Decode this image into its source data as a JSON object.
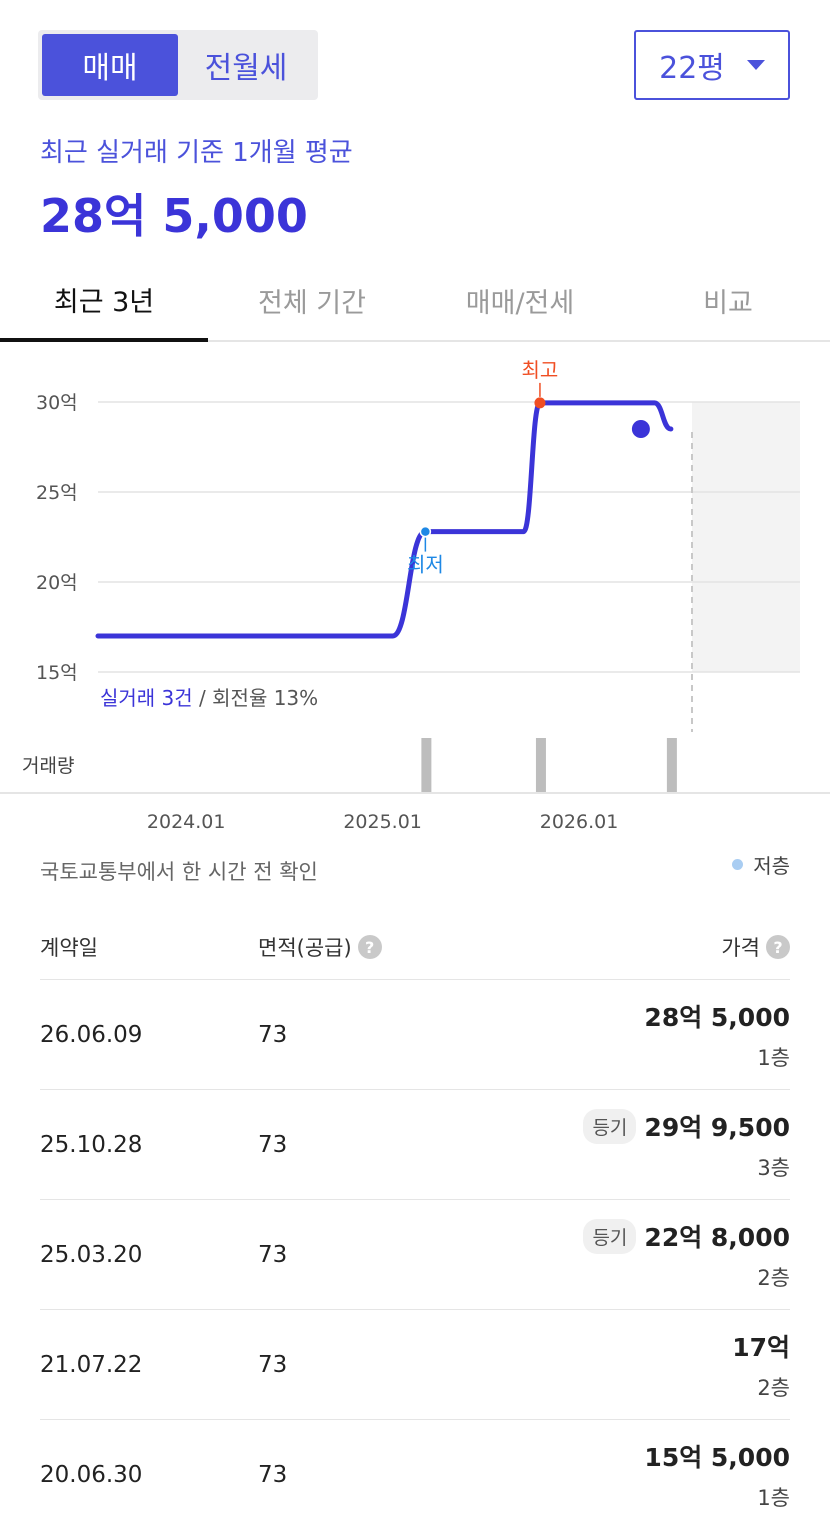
{
  "deal_type": {
    "active": "매매",
    "inactive": "전월세"
  },
  "size_select": {
    "value": "22평"
  },
  "summary": {
    "label": "최근 실거래 기준 1개월 평균",
    "value": "28억 5,000"
  },
  "tabs": [
    {
      "label": "최근 3년",
      "active": true
    },
    {
      "label": "전체 기간",
      "active": false
    },
    {
      "label": "매매/전세",
      "active": false
    },
    {
      "label": "비교",
      "active": false
    }
  ],
  "chart_data": {
    "type": "line",
    "y_unit": "억",
    "yticks": [
      "30억",
      "25억",
      "20억",
      "15억"
    ],
    "ytick_values": [
      30,
      25,
      20,
      15
    ],
    "ylim": [
      15,
      30
    ],
    "xticks": [
      "2024.01",
      "2025.01",
      "2026.01"
    ],
    "xlim": [
      "2023.07",
      "2026.09"
    ],
    "series": [
      {
        "points": [
          {
            "x": "2023.07",
            "y": 17
          },
          {
            "x": "2025.01",
            "y": 17
          },
          {
            "x": "2025.03",
            "y": 22.8
          },
          {
            "x": "2025.09",
            "y": 22.8
          },
          {
            "x": "2025.10",
            "y": 29.95
          },
          {
            "x": "2026.05",
            "y": 29.95
          },
          {
            "x": "2026.06",
            "y": 28.5
          }
        ]
      }
    ],
    "annotations": {
      "high": "최고",
      "low": "최저"
    },
    "summary_link": "실거래 3건",
    "summary_rest": " / 회전율 13%",
    "volume_label": "거래량",
    "volume_bars": [
      "2025.03",
      "2025.10",
      "2026.06"
    ]
  },
  "source_text": "국토교통부에서 한 시간 전 확인",
  "legend": {
    "label": "저층",
    "color": "#a9cdf2"
  },
  "table": {
    "headers": {
      "date": "계약일",
      "area": "면적(공급)",
      "price": "가격"
    },
    "rows": [
      {
        "date": "26.06.09",
        "area": "73",
        "badge": "",
        "price": "28억 5,000",
        "floor": "1층"
      },
      {
        "date": "25.10.28",
        "area": "73",
        "badge": "등기",
        "price": "29억 9,500",
        "floor": "3층"
      },
      {
        "date": "25.03.20",
        "area": "73",
        "badge": "등기",
        "price": "22억 8,000",
        "floor": "2층"
      },
      {
        "date": "21.07.22",
        "area": "73",
        "badge": "",
        "price": "17억",
        "floor": "2층"
      },
      {
        "date": "20.06.30",
        "area": "73",
        "badge": "",
        "price": "15억 5,000",
        "floor": "1층"
      }
    ]
  },
  "colors": {
    "accent": "#4b52db",
    "line": "#3b34d8",
    "high": "#f04e23",
    "low": "#1e88e5"
  }
}
